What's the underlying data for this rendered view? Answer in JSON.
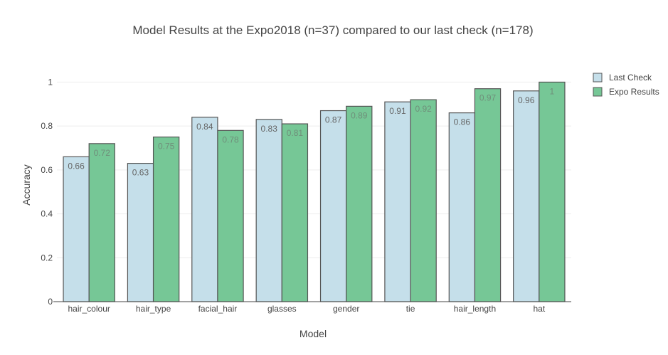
{
  "chart_data": {
    "type": "bar",
    "title": "Model Results at the Expo2018 (n=37) compared to our last check (n=178)",
    "xlabel": "Model",
    "ylabel": "Accuracy",
    "categories": [
      "hair_colour",
      "hair_type",
      "facial_hair",
      "glasses",
      "gender",
      "tie",
      "hair_length",
      "hat"
    ],
    "series": [
      {
        "name": "Last Check",
        "values": [
          0.66,
          0.63,
          0.84,
          0.83,
          0.87,
          0.91,
          0.86,
          0.96
        ],
        "color": "#c5dfea",
        "label_color": "#666666"
      },
      {
        "name": "Expo Results",
        "values": [
          0.72,
          0.75,
          0.78,
          0.81,
          0.89,
          0.92,
          0.97,
          1
        ],
        "color": "#76c796",
        "label_color": "#6f8f7a"
      }
    ],
    "ylim": [
      0,
      1.05
    ],
    "yticks": [
      0,
      0.2,
      0.4,
      0.6,
      0.8,
      1
    ],
    "ytick_labels": [
      "0",
      "0.2",
      "0.4",
      "0.6",
      "0.8",
      "1"
    ],
    "grid": true,
    "legend": "top-right",
    "bar_stroke_color": "#555555"
  }
}
